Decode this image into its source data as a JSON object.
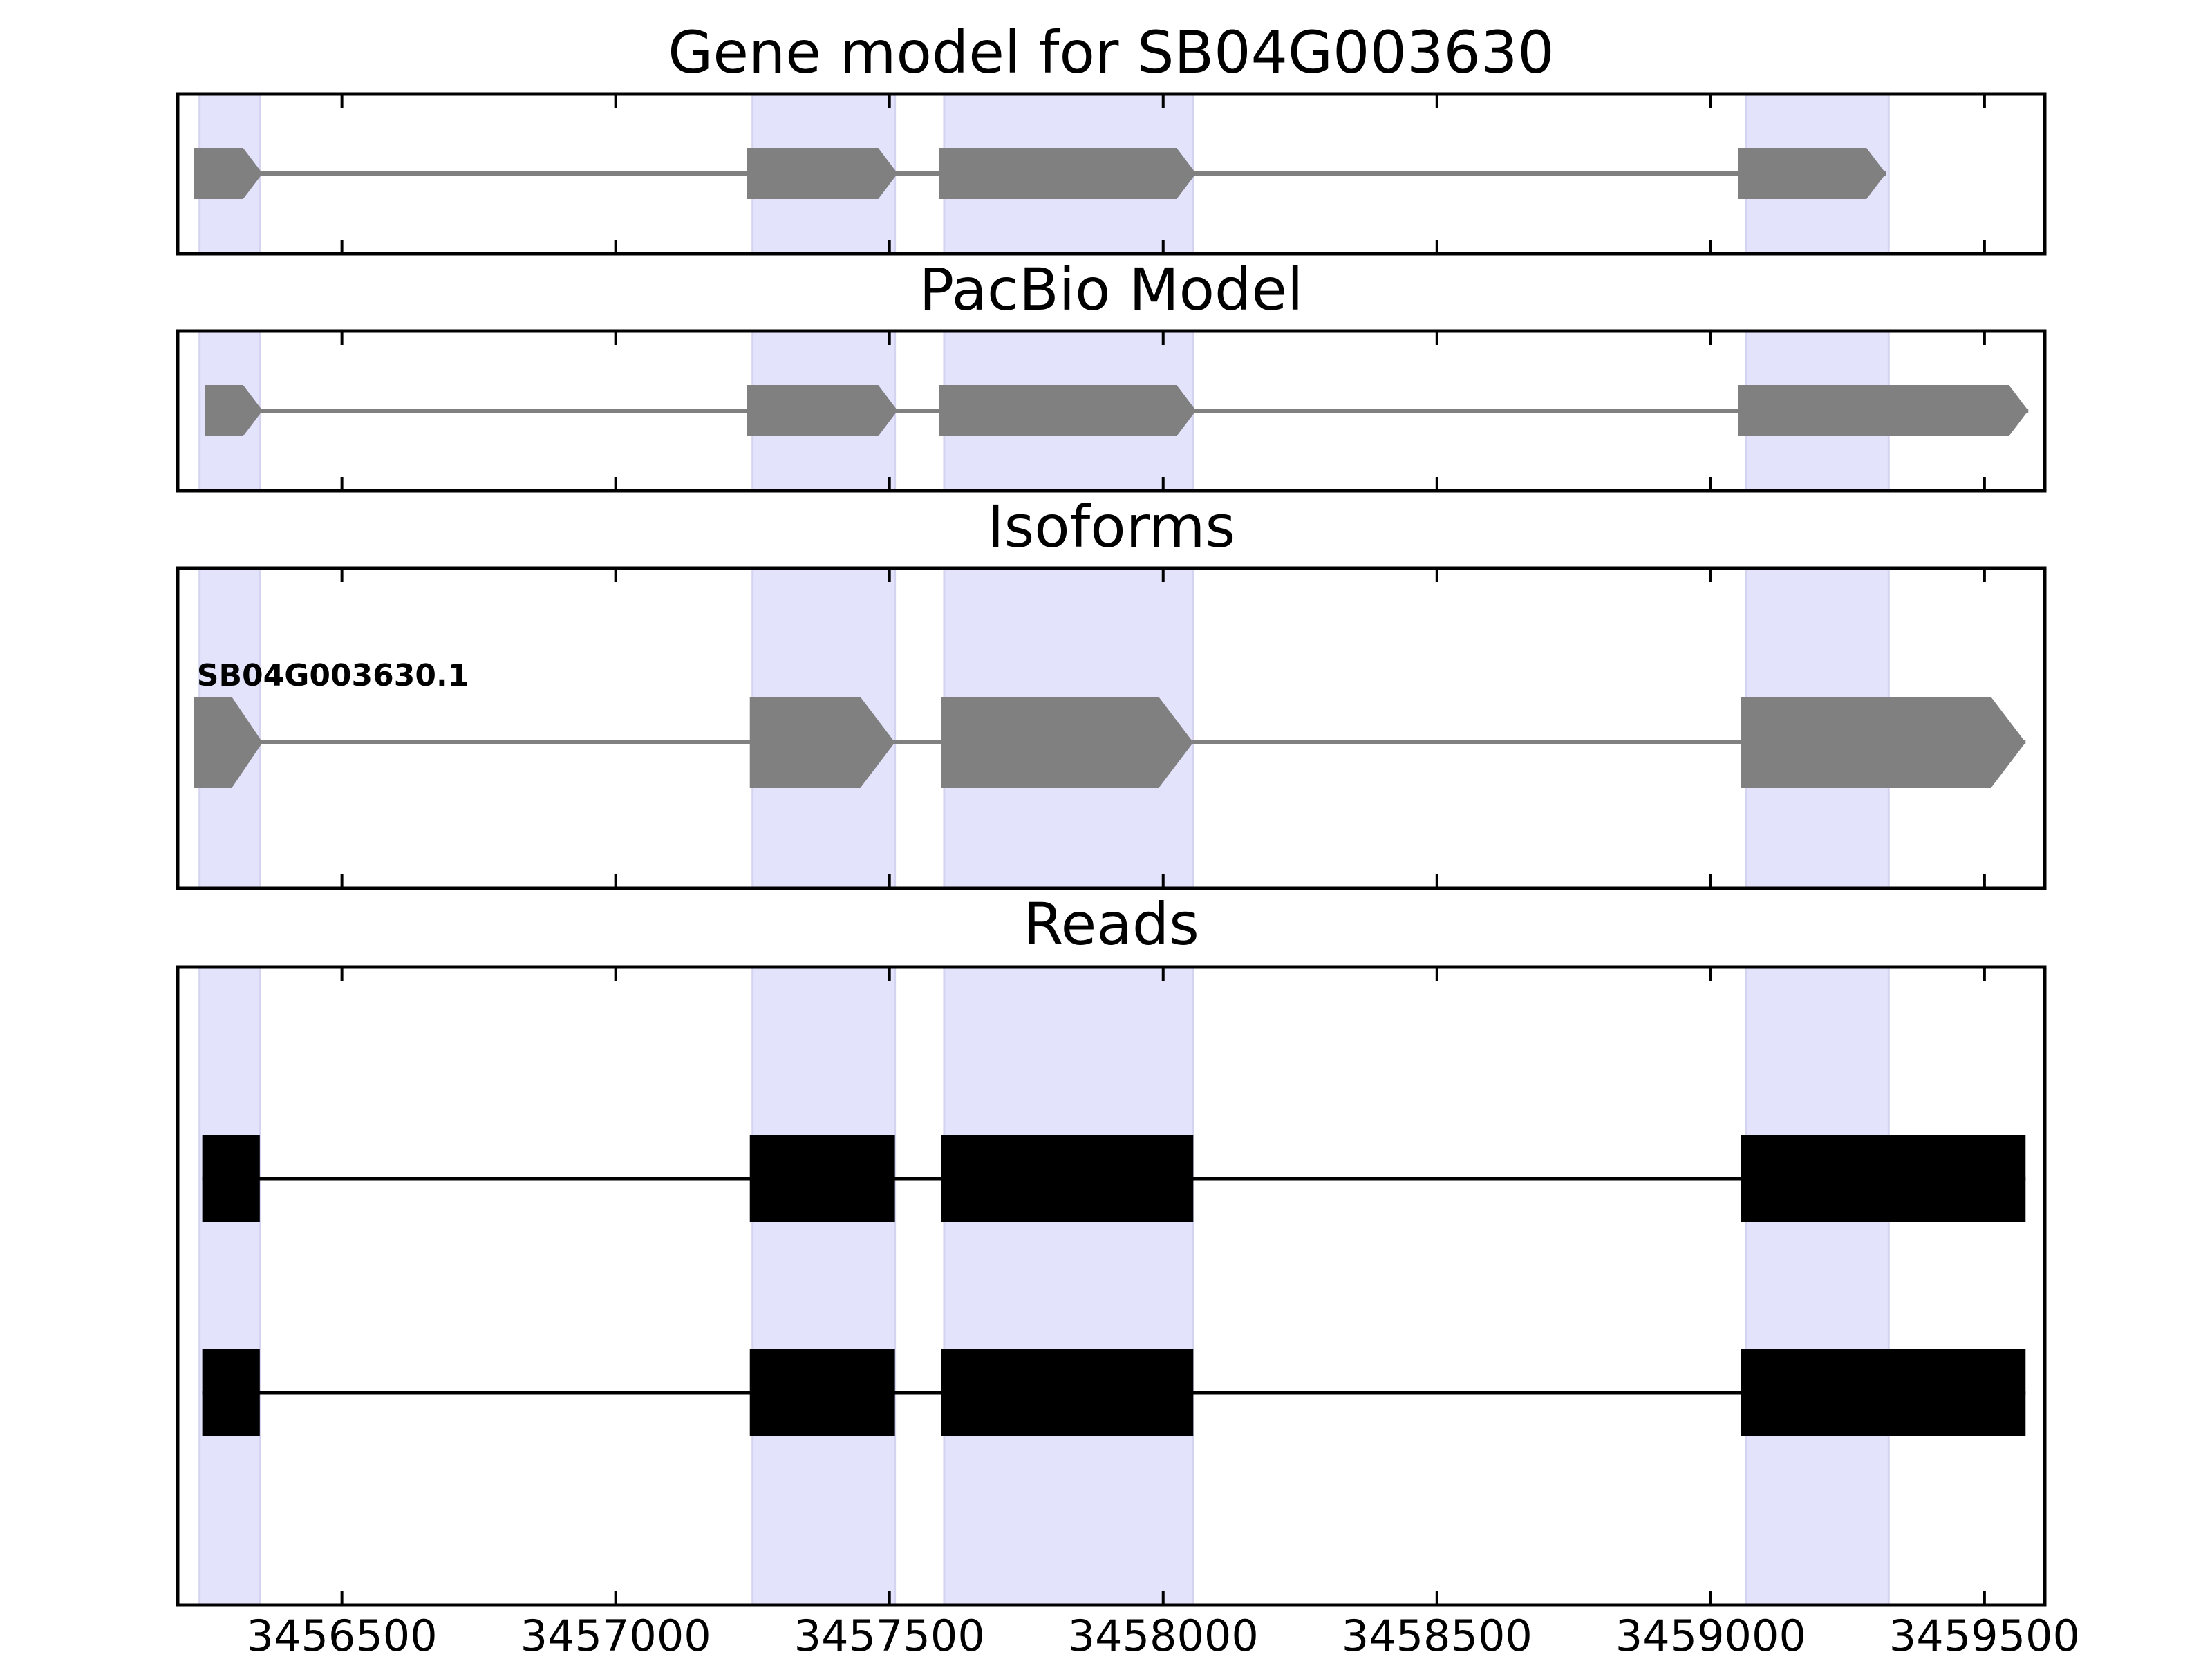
{
  "chart_data": {
    "type": "gene-track",
    "xlim": [
      3456200,
      3459610
    ],
    "x_ticks": [
      3456500,
      3457000,
      3457500,
      3458000,
      3458500,
      3459000,
      3459500
    ],
    "x_tick_labels": [
      "3456500",
      "3457000",
      "3457500",
      "3458000",
      "3458500",
      "3459000",
      "3459500"
    ],
    "highlight_regions": [
      [
        3456240,
        3456350
      ],
      [
        3457250,
        3457510
      ],
      [
        3457600,
        3458055
      ],
      [
        3459065,
        3459325
      ]
    ],
    "colors": {
      "highlight": "#e3e3fc",
      "model_exon": "#808080",
      "intron_gray": "#808080",
      "read_exon": "#000000",
      "axis": "#000000"
    },
    "panels": [
      {
        "title": "Gene model for SB04G003630",
        "style": "arrow",
        "tracks": [
          {
            "label": "",
            "exons": [
              [
                3456230,
                3456355
              ],
              [
                3457240,
                3457515
              ],
              [
                3457590,
                3458060
              ],
              [
                3459050,
                3459320
              ]
            ]
          }
        ]
      },
      {
        "title": "PacBio Model",
        "style": "arrow",
        "tracks": [
          {
            "label": "",
            "exons": [
              [
                3456250,
                3456355
              ],
              [
                3457240,
                3457515
              ],
              [
                3457590,
                3458060
              ],
              [
                3459050,
                3459580
              ]
            ]
          }
        ]
      },
      {
        "title": "Isoforms",
        "style": "arrow",
        "tracks": [
          {
            "label": "SB04G003630.1",
            "exons": [
              [
                3456230,
                3456355
              ],
              [
                3457245,
                3457510
              ],
              [
                3457595,
                3458055
              ],
              [
                3459055,
                3459575
              ]
            ]
          }
        ]
      },
      {
        "title": "Reads",
        "style": "block",
        "tracks": [
          {
            "label": "",
            "exons": [
              [
                3456245,
                3456350
              ],
              [
                3457245,
                3457510
              ],
              [
                3457595,
                3458055
              ],
              [
                3459055,
                3459575
              ]
            ]
          },
          {
            "label": "",
            "exons": [
              [
                3456245,
                3456350
              ],
              [
                3457245,
                3457510
              ],
              [
                3457595,
                3458055
              ],
              [
                3459055,
                3459575
              ]
            ]
          }
        ]
      }
    ]
  }
}
